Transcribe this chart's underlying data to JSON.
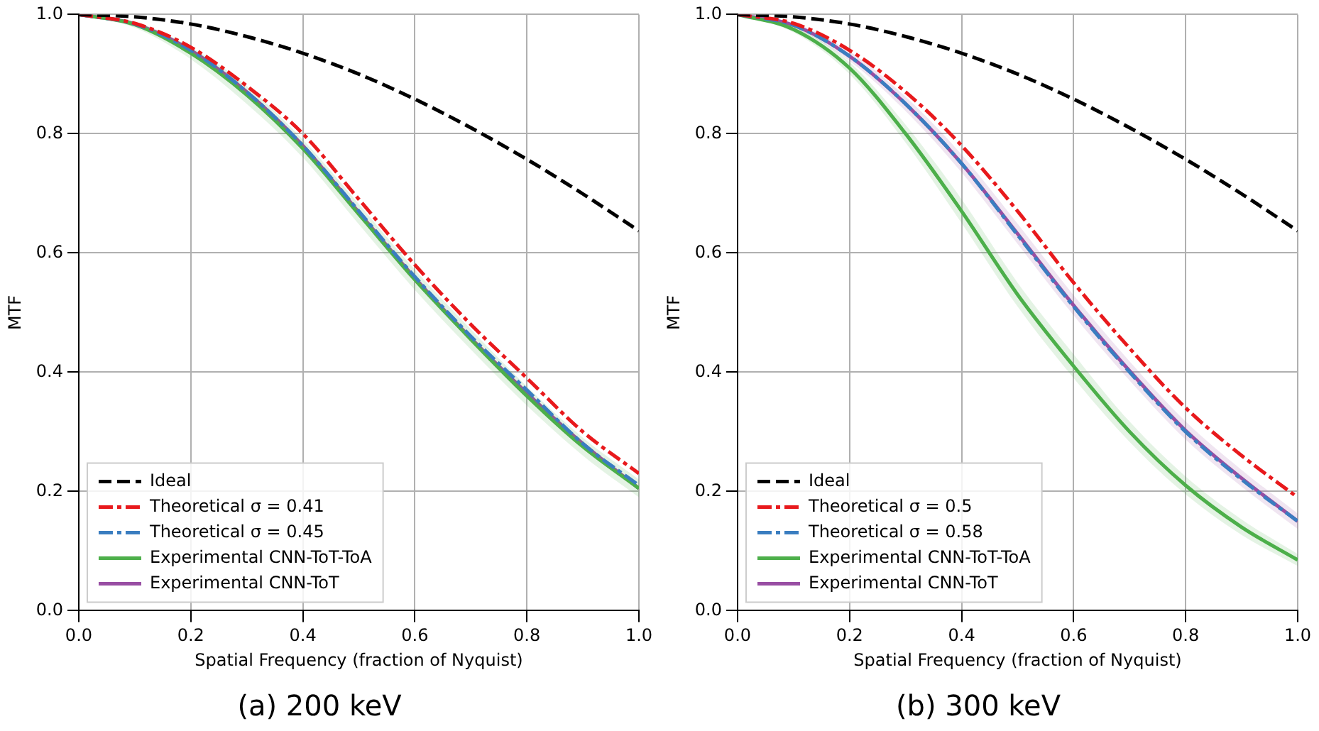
{
  "chart_data": [
    {
      "type": "line",
      "title": "(a) 200 keV",
      "xlabel": "Spatial Frequency (fraction of Nyquist)",
      "ylabel": "MTF",
      "x": [
        0,
        0.1,
        0.2,
        0.3,
        0.4,
        0.5,
        0.6,
        0.7,
        0.8,
        0.9,
        1.0
      ],
      "xlim": [
        0,
        1
      ],
      "ylim": [
        0,
        1
      ],
      "xticks": [
        {
          "value": 0,
          "label": "0.0"
        },
        {
          "value": 0.2,
          "label": "0.2"
        },
        {
          "value": 0.4,
          "label": "0.4"
        },
        {
          "value": 0.6,
          "label": "0.6"
        },
        {
          "value": 0.8,
          "label": "0.8"
        },
        {
          "value": 1,
          "label": "1.0"
        }
      ],
      "yticks": [
        {
          "value": 0,
          "label": "0.0"
        },
        {
          "value": 0.2,
          "label": "0.2"
        },
        {
          "value": 0.4,
          "label": "0.4"
        },
        {
          "value": 0.6,
          "label": "0.6"
        },
        {
          "value": 0.8,
          "label": "0.8"
        },
        {
          "value": 1,
          "label": "1.0"
        }
      ],
      "grid": true,
      "legend": "bottom left",
      "marker": "none",
      "series": [
        {
          "name": "Ideal",
          "color": "#000000",
          "line_style": "dashed",
          "values": [
            1,
            0.996,
            0.984,
            0.963,
            0.935,
            0.9,
            0.858,
            0.81,
            0.757,
            0.699,
            0.637
          ]
        },
        {
          "name": "Theoretical σ = 0.41",
          "color": "#e8191c",
          "line_style": "dashdot",
          "values": [
            1,
            0.985,
            0.945,
            0.88,
            0.8,
            0.69,
            0.58,
            0.48,
            0.39,
            0.3,
            0.23
          ]
        },
        {
          "name": "Theoretical σ = 0.45",
          "color": "#3a7dc0",
          "line_style": "dashdot",
          "values": [
            1,
            0.984,
            0.94,
            0.87,
            0.78,
            0.67,
            0.56,
            0.46,
            0.37,
            0.28,
            0.21
          ]
        },
        {
          "name": "Experimental CNN-ToT-ToA",
          "color": "#4daf4a",
          "line_style": "solid",
          "values": [
            1,
            0.983,
            0.935,
            0.865,
            0.775,
            0.665,
            0.555,
            0.455,
            0.36,
            0.275,
            0.205
          ],
          "lower": [
            1,
            0.978,
            0.925,
            0.85,
            0.76,
            0.648,
            0.538,
            0.438,
            0.344,
            0.26,
            0.19
          ],
          "upper": [
            1,
            0.988,
            0.945,
            0.88,
            0.79,
            0.682,
            0.572,
            0.472,
            0.376,
            0.29,
            0.22
          ]
        },
        {
          "name": "Experimental CNN-ToT",
          "color": "#984ea3",
          "line_style": "solid",
          "values": [
            1,
            0.984,
            0.94,
            0.87,
            0.78,
            0.668,
            0.558,
            0.457,
            0.365,
            0.28,
            0.205
          ]
        }
      ]
    },
    {
      "type": "line",
      "title": "(b) 300 keV",
      "xlabel": "Spatial Frequency (fraction of Nyquist)",
      "ylabel": "MTF",
      "x": [
        0,
        0.1,
        0.2,
        0.3,
        0.4,
        0.5,
        0.6,
        0.7,
        0.8,
        0.9,
        1.0
      ],
      "xlim": [
        0,
        1
      ],
      "ylim": [
        0,
        1
      ],
      "xticks": [
        {
          "value": 0,
          "label": "0.0"
        },
        {
          "value": 0.2,
          "label": "0.2"
        },
        {
          "value": 0.4,
          "label": "0.4"
        },
        {
          "value": 0.6,
          "label": "0.6"
        },
        {
          "value": 0.8,
          "label": "0.8"
        },
        {
          "value": 1,
          "label": "1.0"
        }
      ],
      "yticks": [
        {
          "value": 0,
          "label": "0.0"
        },
        {
          "value": 0.2,
          "label": "0.2"
        },
        {
          "value": 0.4,
          "label": "0.4"
        },
        {
          "value": 0.6,
          "label": "0.6"
        },
        {
          "value": 0.8,
          "label": "0.8"
        },
        {
          "value": 1,
          "label": "1.0"
        }
      ],
      "grid": true,
      "legend": "bottom left",
      "marker": "none",
      "series": [
        {
          "name": "Ideal",
          "color": "#000000",
          "line_style": "dashed",
          "values": [
            1,
            0.996,
            0.984,
            0.963,
            0.935,
            0.9,
            0.858,
            0.81,
            0.757,
            0.699,
            0.637
          ]
        },
        {
          "name": "Theoretical σ = 0.5",
          "color": "#e8191c",
          "line_style": "dashdot",
          "values": [
            1,
            0.985,
            0.94,
            0.87,
            0.78,
            0.67,
            0.55,
            0.44,
            0.34,
            0.26,
            0.19
          ]
        },
        {
          "name": "Theoretical σ = 0.58",
          "color": "#3a7dc0",
          "line_style": "dashdot",
          "values": [
            1,
            0.982,
            0.93,
            0.85,
            0.75,
            0.63,
            0.51,
            0.4,
            0.3,
            0.22,
            0.15
          ]
        },
        {
          "name": "Experimental CNN-ToT-ToA",
          "color": "#4daf4a",
          "line_style": "solid",
          "values": [
            1,
            0.975,
            0.91,
            0.8,
            0.67,
            0.53,
            0.41,
            0.3,
            0.21,
            0.14,
            0.085
          ],
          "lower": [
            1,
            0.97,
            0.9,
            0.785,
            0.65,
            0.51,
            0.39,
            0.283,
            0.195,
            0.127,
            0.075
          ],
          "upper": [
            1,
            0.98,
            0.92,
            0.815,
            0.69,
            0.55,
            0.43,
            0.317,
            0.225,
            0.153,
            0.095
          ]
        },
        {
          "name": "Experimental CNN-ToT",
          "color": "#984ea3",
          "line_style": "solid",
          "values": [
            1,
            0.982,
            0.93,
            0.85,
            0.75,
            0.632,
            0.512,
            0.402,
            0.302,
            0.222,
            0.15
          ],
          "lower": [
            1,
            0.978,
            0.922,
            0.838,
            0.735,
            0.615,
            0.495,
            0.386,
            0.287,
            0.208,
            0.137
          ],
          "upper": [
            1,
            0.986,
            0.938,
            0.862,
            0.765,
            0.649,
            0.529,
            0.418,
            0.317,
            0.236,
            0.163
          ]
        }
      ]
    }
  ]
}
